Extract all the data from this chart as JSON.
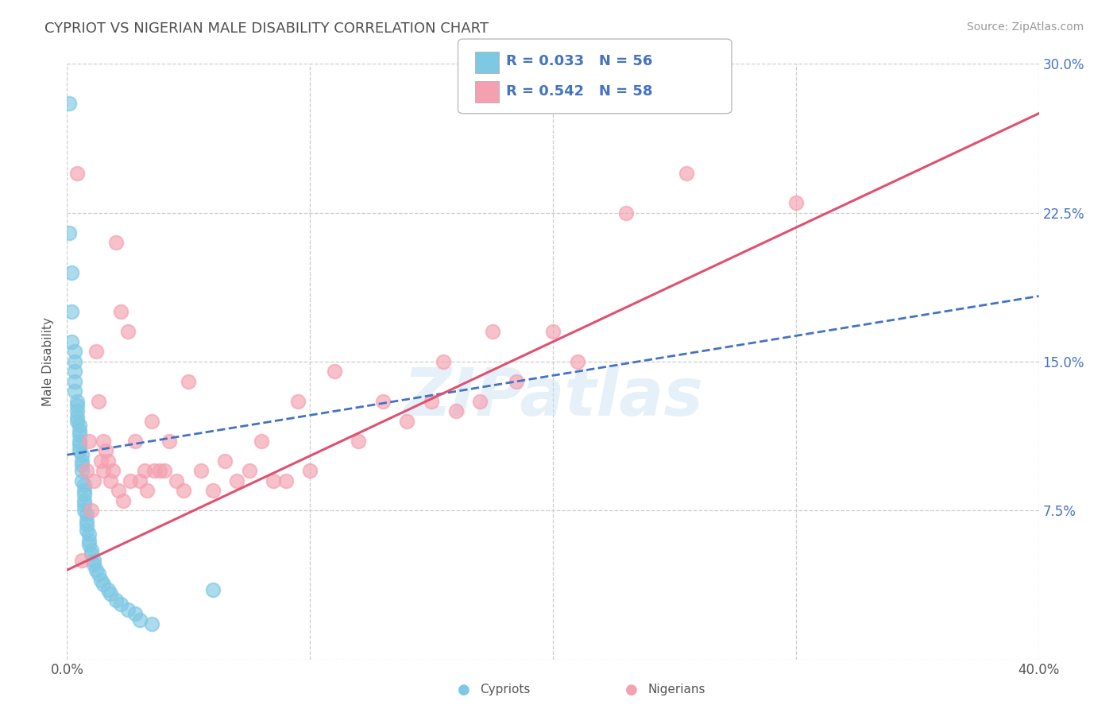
{
  "title": "CYPRIOT VS NIGERIAN MALE DISABILITY CORRELATION CHART",
  "source_text": "Source: ZipAtlas.com",
  "ylabel": "Male Disability",
  "x_min": 0.0,
  "x_max": 0.4,
  "y_min": 0.0,
  "y_max": 0.3,
  "y_ticks": [
    0.0,
    0.075,
    0.15,
    0.225,
    0.3
  ],
  "y_tick_labels": [
    "",
    "7.5%",
    "15.0%",
    "22.5%",
    "30.0%"
  ],
  "cypriot_color": "#7ec8e3",
  "nigerian_color": "#f4a0b0",
  "cypriot_line_color": "#4472c4",
  "nigerian_line_color": "#e05070",
  "cypriot_R": 0.033,
  "cypriot_N": 56,
  "nigerian_R": 0.542,
  "nigerian_N": 58,
  "legend_text_color": "#4472c4",
  "title_color": "#505050",
  "watermark": "ZIPatlas",
  "background_color": "#ffffff",
  "grid_color": "#cccccc",
  "cypriot_scatter_x": [
    0.001,
    0.001,
    0.002,
    0.002,
    0.002,
    0.003,
    0.003,
    0.003,
    0.003,
    0.003,
    0.004,
    0.004,
    0.004,
    0.004,
    0.004,
    0.005,
    0.005,
    0.005,
    0.005,
    0.005,
    0.005,
    0.006,
    0.006,
    0.006,
    0.006,
    0.006,
    0.007,
    0.007,
    0.007,
    0.007,
    0.007,
    0.007,
    0.008,
    0.008,
    0.008,
    0.008,
    0.009,
    0.009,
    0.009,
    0.01,
    0.01,
    0.011,
    0.011,
    0.012,
    0.013,
    0.014,
    0.015,
    0.017,
    0.018,
    0.02,
    0.022,
    0.025,
    0.028,
    0.03,
    0.035,
    0.06
  ],
  "cypriot_scatter_y": [
    0.28,
    0.215,
    0.195,
    0.175,
    0.16,
    0.155,
    0.15,
    0.145,
    0.14,
    0.135,
    0.13,
    0.128,
    0.125,
    0.122,
    0.12,
    0.118,
    0.115,
    0.113,
    0.11,
    0.108,
    0.105,
    0.103,
    0.1,
    0.098,
    0.095,
    0.09,
    0.088,
    0.085,
    0.083,
    0.08,
    0.078,
    0.075,
    0.073,
    0.07,
    0.068,
    0.065,
    0.063,
    0.06,
    0.058,
    0.055,
    0.053,
    0.05,
    0.048,
    0.045,
    0.043,
    0.04,
    0.038,
    0.035,
    0.033,
    0.03,
    0.028,
    0.025,
    0.023,
    0.02,
    0.018,
    0.035
  ],
  "nigerian_scatter_x": [
    0.004,
    0.006,
    0.008,
    0.009,
    0.01,
    0.011,
    0.012,
    0.013,
    0.014,
    0.015,
    0.015,
    0.016,
    0.017,
    0.018,
    0.019,
    0.02,
    0.021,
    0.022,
    0.023,
    0.025,
    0.026,
    0.028,
    0.03,
    0.032,
    0.033,
    0.035,
    0.036,
    0.038,
    0.04,
    0.042,
    0.045,
    0.048,
    0.05,
    0.055,
    0.06,
    0.065,
    0.07,
    0.075,
    0.08,
    0.085,
    0.09,
    0.095,
    0.1,
    0.11,
    0.12,
    0.13,
    0.14,
    0.15,
    0.155,
    0.16,
    0.17,
    0.175,
    0.185,
    0.2,
    0.21,
    0.23,
    0.255,
    0.3
  ],
  "nigerian_scatter_y": [
    0.245,
    0.05,
    0.095,
    0.11,
    0.075,
    0.09,
    0.155,
    0.13,
    0.1,
    0.11,
    0.095,
    0.105,
    0.1,
    0.09,
    0.095,
    0.21,
    0.085,
    0.175,
    0.08,
    0.165,
    0.09,
    0.11,
    0.09,
    0.095,
    0.085,
    0.12,
    0.095,
    0.095,
    0.095,
    0.11,
    0.09,
    0.085,
    0.14,
    0.095,
    0.085,
    0.1,
    0.09,
    0.095,
    0.11,
    0.09,
    0.09,
    0.13,
    0.095,
    0.145,
    0.11,
    0.13,
    0.12,
    0.13,
    0.15,
    0.125,
    0.13,
    0.165,
    0.14,
    0.165,
    0.15,
    0.225,
    0.245,
    0.23
  ],
  "cyp_trend_x0": 0.0,
  "cyp_trend_y0": 0.103,
  "cyp_trend_x1": 0.4,
  "cyp_trend_y1": 0.183,
  "nig_trend_x0": 0.0,
  "nig_trend_y0": 0.045,
  "nig_trend_x1": 0.4,
  "nig_trend_y1": 0.275
}
